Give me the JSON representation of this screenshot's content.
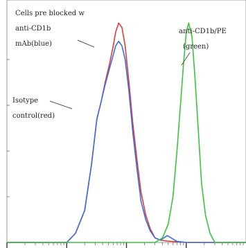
{
  "chart_data": {
    "type": "line",
    "title": "",
    "xlabel": "",
    "ylabel": "",
    "xscale": "log",
    "xlim": [
      1,
      10000
    ],
    "ylim": [
      0,
      100
    ],
    "grid": false,
    "legend": "none",
    "series": [
      {
        "color": "#e03a3a",
        "x": [
          1,
          10,
          14,
          20,
          26,
          32,
          38,
          44,
          52,
          60,
          66,
          74,
          84,
          95,
          110,
          128,
          150,
          175,
          210,
          250,
          300,
          370,
          480,
          700,
          1000,
          10000
        ],
        "y": [
          0,
          0,
          4,
          14,
          34,
          54,
          62,
          70,
          78,
          86,
          92,
          96,
          94,
          86,
          70,
          52,
          36,
          22,
          12,
          6,
          2,
          1,
          0.6,
          0.3,
          0,
          0
        ]
      },
      {
        "color": "#3a6ee0",
        "x": [
          1,
          10,
          14,
          20,
          26,
          32,
          38,
          44,
          52,
          60,
          66,
          74,
          84,
          95,
          110,
          128,
          150,
          175,
          210,
          250,
          300,
          370,
          480,
          700,
          1000,
          10000
        ],
        "y": [
          0,
          0,
          4,
          14,
          34,
          54,
          62,
          69,
          76,
          82,
          86,
          88,
          86,
          80,
          66,
          48,
          32,
          18,
          10,
          5,
          2,
          1,
          3,
          0.5,
          0,
          0
        ]
      },
      {
        "color": "#3cc23c",
        "x": [
          1,
          300,
          400,
          500,
          600,
          700,
          800,
          900,
          1000,
          1100,
          1250,
          1400,
          1600,
          1800,
          2100,
          2500,
          3000,
          10000
        ],
        "y": [
          0,
          0,
          2,
          8,
          20,
          40,
          60,
          78,
          92,
          96,
          90,
          72,
          48,
          26,
          12,
          4,
          0,
          0
        ]
      }
    ],
    "annotations": [
      {
        "id": "blocked",
        "lines": [
          "Cells pre blocked w",
          "anti-CD1b",
          "mAb(blue)"
        ]
      },
      {
        "id": "isotype",
        "lines": [
          "Isotype",
          "control(red)"
        ]
      },
      {
        "id": "stained",
        "lines": [
          "anti-CD1b/PE",
          "(green)"
        ]
      }
    ]
  }
}
